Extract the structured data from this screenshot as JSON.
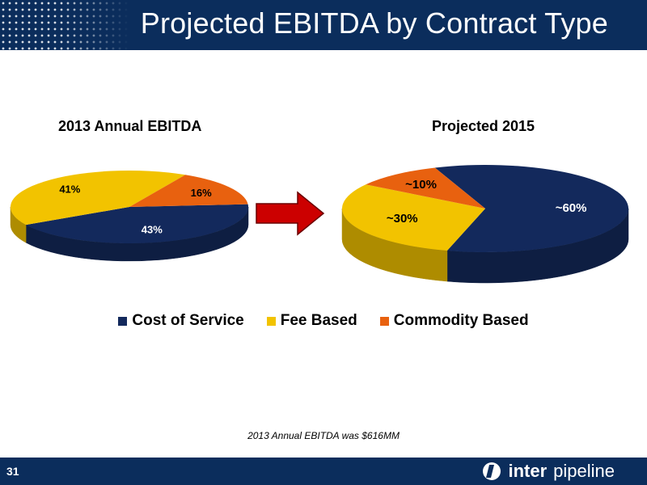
{
  "header": {
    "title": "Projected EBITDA by Contract Type"
  },
  "colors": {
    "header_bg": "#0b2d5c",
    "cost_of_service": "#13295c",
    "fee_based": "#f2c300",
    "commodity_based": "#e8610f",
    "arrow": "#cc0000"
  },
  "chart_data": [
    {
      "type": "pie",
      "title": "2013 Annual EBITDA",
      "slices": [
        {
          "name": "Cost of Service",
          "value": 43,
          "label": "43%"
        },
        {
          "name": "Fee Based",
          "value": 41,
          "label": "41%"
        },
        {
          "name": "Commodity Based",
          "value": 16,
          "label": "16%"
        }
      ]
    },
    {
      "type": "pie",
      "title": "Projected 2015",
      "slices": [
        {
          "name": "Cost of Service",
          "value": 60,
          "label": "~60%"
        },
        {
          "name": "Fee Based",
          "value": 30,
          "label": "~30%"
        },
        {
          "name": "Commodity Based",
          "value": 10,
          "label": "~10%"
        }
      ]
    }
  ],
  "legend": {
    "items": [
      {
        "label": "Cost of Service",
        "color": "#13295c"
      },
      {
        "label": "Fee Based",
        "color": "#f2c300"
      },
      {
        "label": "Commodity Based",
        "color": "#e8610f"
      }
    ]
  },
  "footnote": "2013 Annual EBITDA was $616MM",
  "footer": {
    "page_number": "31",
    "logo_bold": "inter",
    "logo_light": "pipeline"
  }
}
